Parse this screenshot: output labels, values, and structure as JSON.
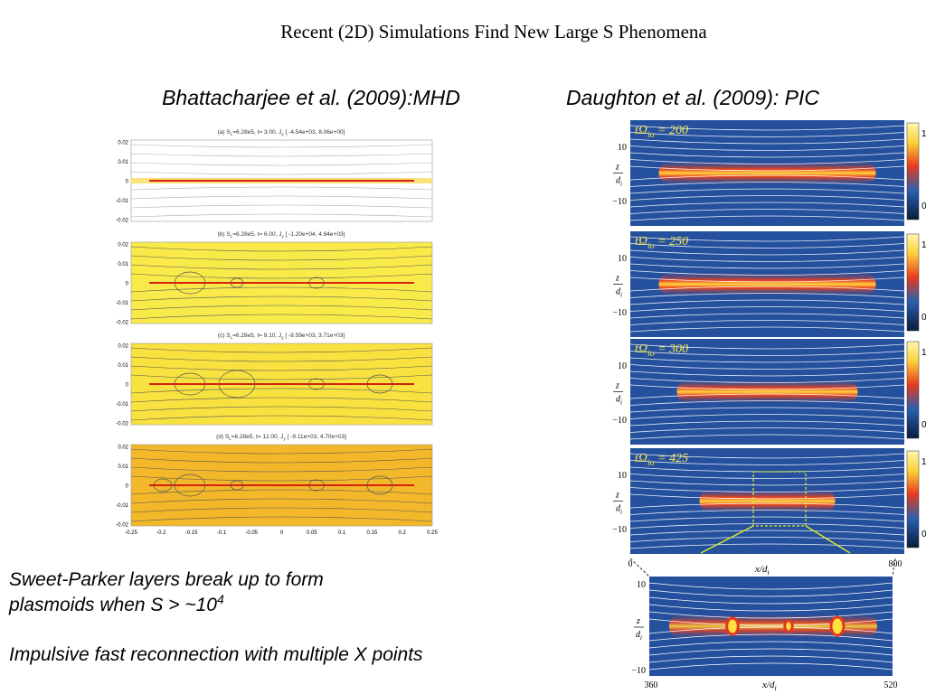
{
  "title": "Recent (2D) Simulations Find New Large S Phenomena",
  "left_heading": "Bhattacharjee et al. (2009):MHD",
  "right_heading": "Daughton et al. (2009): PIC",
  "mhd": {
    "panels": [
      {
        "caption": [
          "(a) S",
          "L",
          "=6.28e5, t=  3.00, J",
          "y",
          " [ -4.54e+03,  8.06e+00]"
        ]
      },
      {
        "caption": [
          "(b) S",
          "L",
          "=6.28e5, t=  6.00, J",
          "y",
          " [ -1.20e+04,  4.94e+03]"
        ]
      },
      {
        "caption": [
          "(c) S",
          "L",
          "=6.28e5, t=  9.10, J",
          "y",
          " [ -9.59e+03,  3.71e+03]"
        ]
      },
      {
        "caption": [
          "(d) S",
          "L",
          "=6.28e5, t= 12.00, J",
          "y",
          " [ -9.11e+03,  4.70e+03]"
        ]
      }
    ],
    "yticks": [
      "0.02",
      "0.01",
      "0",
      "-0.01",
      "-0.02"
    ],
    "xticks": [
      "-0.25",
      "-0.2",
      "-0.15",
      "-0.1",
      "-0.05",
      "0",
      "0.05",
      "0.1",
      "0.15",
      "0.2",
      "0.25"
    ]
  },
  "pic": {
    "panels": [
      {
        "label": [
          "tΩ",
          "io",
          " = 200"
        ]
      },
      {
        "label": [
          "tΩ",
          "io",
          " = 250"
        ]
      },
      {
        "label": [
          "tΩ",
          "io",
          " = 300"
        ]
      },
      {
        "label": [
          "tΩ",
          "io",
          " = 425"
        ]
      }
    ],
    "z_ticks": [
      "10",
      "−10"
    ],
    "z_label": [
      "z",
      "d",
      "i"
    ],
    "colorbar_ticks": [
      "1",
      "0"
    ],
    "x_ticks": [
      "0",
      "800"
    ],
    "x_label": [
      "x/d",
      "i"
    ],
    "zoom": {
      "x_ticks": [
        "360",
        "520"
      ],
      "z_ticks": [
        "10",
        "−10"
      ]
    }
  },
  "notes": [
    [
      "Sweet-Parker layers break up to form",
      "plasmoids when S > ~10",
      "4"
    ],
    [
      "Impulsive fast reconnection with multiple X points"
    ]
  ]
}
